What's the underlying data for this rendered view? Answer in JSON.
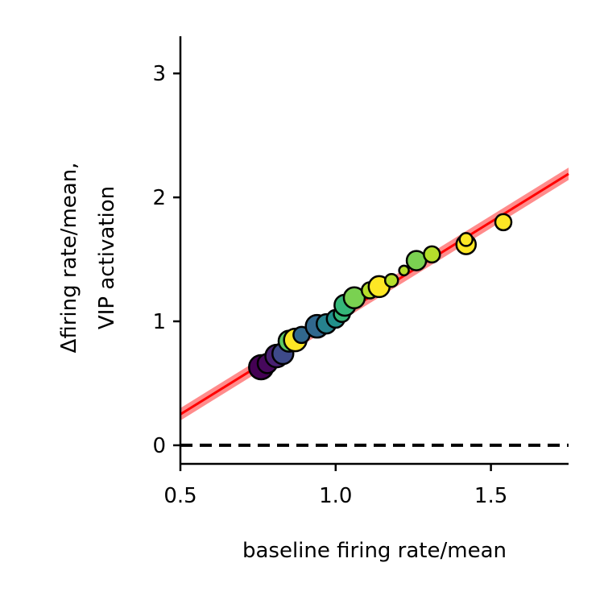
{
  "chart_data": {
    "type": "scatter",
    "title": "",
    "xlabel": "baseline firing rate/mean",
    "ylabel_lines": [
      "Δfiring rate/mean,",
      "VIP activation"
    ],
    "xlim": [
      0.5,
      1.75
    ],
    "ylim": [
      -0.15,
      3.3
    ],
    "xticks": [
      {
        "value": 0.5,
        "label": "0.5"
      },
      {
        "value": 1.0,
        "label": "1.0"
      },
      {
        "value": 1.5,
        "label": "1.5"
      }
    ],
    "yticks": [
      {
        "value": 0,
        "label": "0"
      },
      {
        "value": 1,
        "label": "1"
      },
      {
        "value": 2,
        "label": "2"
      },
      {
        "value": 3,
        "label": "3"
      }
    ],
    "grid": false,
    "reference_line": {
      "y": 0,
      "style": "dashed",
      "color": "#000000"
    },
    "fit_line": {
      "x": [
        0.5,
        1.75
      ],
      "y": [
        0.25,
        2.19
      ],
      "color": "#ff0000",
      "band": 0.05
    },
    "points": [
      {
        "x": 0.76,
        "y": 0.63,
        "color": "#440154",
        "size": 15
      },
      {
        "x": 0.78,
        "y": 0.66,
        "color": "#46085c",
        "size": 12
      },
      {
        "x": 0.81,
        "y": 0.72,
        "color": "#482071",
        "size": 14
      },
      {
        "x": 0.83,
        "y": 0.74,
        "color": "#3e4a89",
        "size": 13
      },
      {
        "x": 0.85,
        "y": 0.84,
        "color": "#5ec962",
        "size": 13
      },
      {
        "x": 0.87,
        "y": 0.85,
        "color": "#fde725",
        "size": 14
      },
      {
        "x": 0.89,
        "y": 0.89,
        "color": "#31688e",
        "size": 10
      },
      {
        "x": 0.94,
        "y": 0.96,
        "color": "#31688e",
        "size": 14
      },
      {
        "x": 0.97,
        "y": 0.98,
        "color": "#26828e",
        "size": 12
      },
      {
        "x": 1.0,
        "y": 1.02,
        "color": "#21918c",
        "size": 11
      },
      {
        "x": 1.02,
        "y": 1.06,
        "color": "#35b779",
        "size": 10
      },
      {
        "x": 1.03,
        "y": 1.13,
        "color": "#35b779",
        "size": 13
      },
      {
        "x": 1.06,
        "y": 1.19,
        "color": "#7ad151",
        "size": 13
      },
      {
        "x": 1.11,
        "y": 1.25,
        "color": "#b5de2b",
        "size": 10
      },
      {
        "x": 1.14,
        "y": 1.28,
        "color": "#fde725",
        "size": 13
      },
      {
        "x": 1.18,
        "y": 1.33,
        "color": "#b5de2b",
        "size": 8
      },
      {
        "x": 1.22,
        "y": 1.41,
        "color": "#b5de2b",
        "size": 6
      },
      {
        "x": 1.26,
        "y": 1.49,
        "color": "#7ad151",
        "size": 12
      },
      {
        "x": 1.31,
        "y": 1.54,
        "color": "#b5de2b",
        "size": 10
      },
      {
        "x": 1.42,
        "y": 1.62,
        "color": "#fde725",
        "size": 12
      },
      {
        "x": 1.42,
        "y": 1.66,
        "color": "#fde725",
        "size": 8
      },
      {
        "x": 1.54,
        "y": 1.8,
        "color": "#fde725",
        "size": 10
      }
    ]
  }
}
